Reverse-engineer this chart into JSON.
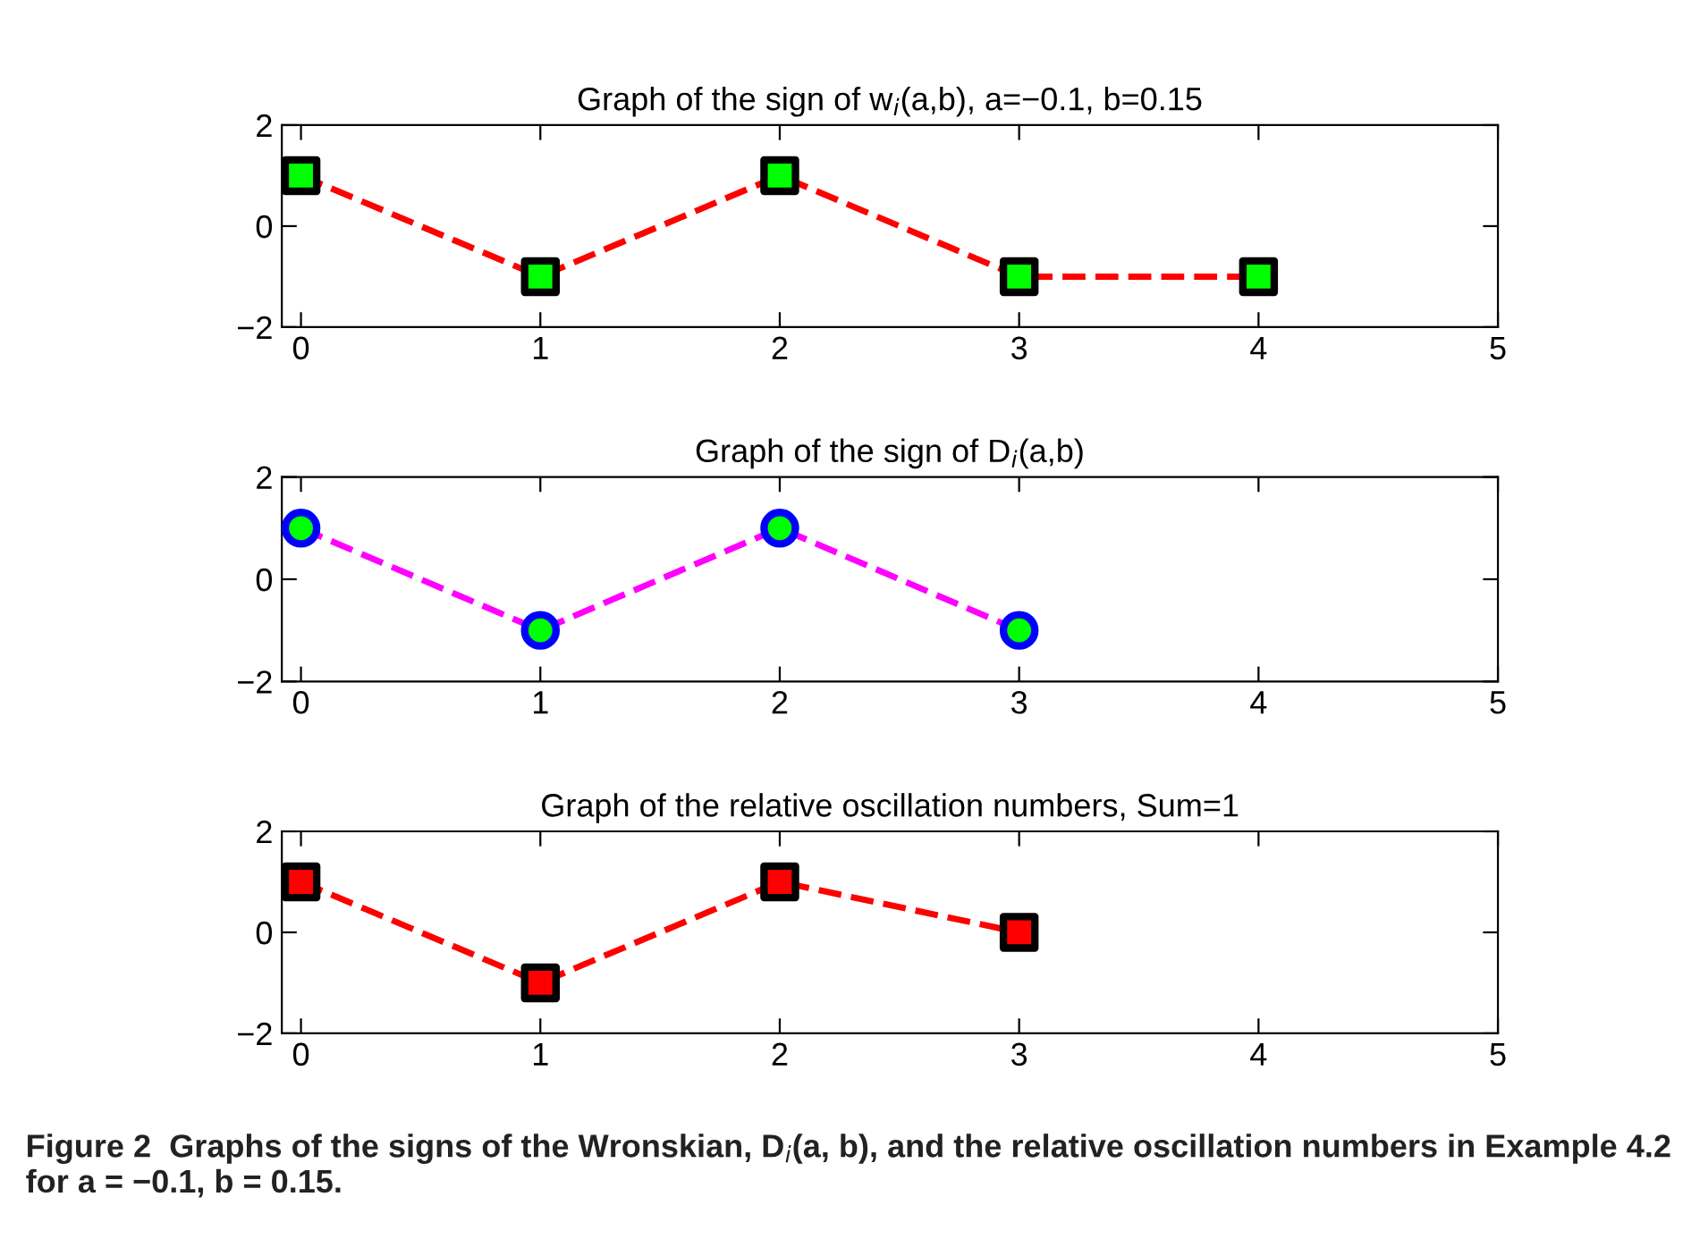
{
  "chart_data": [
    {
      "type": "line",
      "title": "Graph of the sign of w$_{i}$(a,b), a=−0.1, b=0.15",
      "x": [
        0,
        1,
        2,
        3,
        4
      ],
      "marker": "square",
      "line_style": "dashed",
      "grid": false,
      "xlim": [
        -0.08,
        5
      ],
      "xticks": [
        0,
        1,
        2,
        3,
        4,
        5
      ],
      "ylim": [
        -2,
        2
      ],
      "yticks": [
        -2,
        0,
        2
      ],
      "series": [
        {
          "color": "#ff0000",
          "colors": [
            "#00ff00",
            "#00ff00",
            "#00ff00",
            "#00ff00",
            "#00ff00"
          ],
          "values": [
            1,
            -1,
            1,
            -1,
            -1
          ]
        }
      ]
    },
    {
      "type": "line",
      "title": "Graph of the sign of D$_{i}$(a,b)",
      "x": [
        0,
        1,
        2,
        3
      ],
      "marker": "circle",
      "line_style": "dashed",
      "grid": false,
      "xlim": [
        -0.08,
        5
      ],
      "xticks": [
        0,
        1,
        2,
        3,
        4,
        5
      ],
      "ylim": [
        -2,
        2
      ],
      "yticks": [
        -2,
        0,
        2
      ],
      "series": [
        {
          "color": "#ff00ff",
          "colors": [
            "#00ff00",
            "#00ff00",
            "#00ff00",
            "#00ff00"
          ],
          "values": [
            1,
            -1,
            1,
            -1
          ]
        }
      ]
    },
    {
      "type": "line",
      "title": "Graph of the relative oscillation numbers, Sum=1",
      "x": [
        0,
        1,
        2,
        3
      ],
      "marker": "square",
      "line_style": "dashed",
      "grid": false,
      "xlim": [
        -0.08,
        5
      ],
      "xticks": [
        0,
        1,
        2,
        3,
        4,
        5
      ],
      "ylim": [
        -2,
        2
      ],
      "yticks": [
        -2,
        0,
        2
      ],
      "series": [
        {
          "color": "#ff0000",
          "colors": [
            "#ff0000",
            "#ff0000",
            "#ff0000",
            "#ff0000"
          ],
          "values": [
            1,
            -1,
            1,
            0
          ]
        }
      ],
      "annotations": [
        "Figure 2  Graphs of the signs of the Wronskian, D$_{i}$(a, b), and the relative oscillation numbers in Example 4.2 for a = −0.1, b = 0.15."
      ]
    }
  ]
}
